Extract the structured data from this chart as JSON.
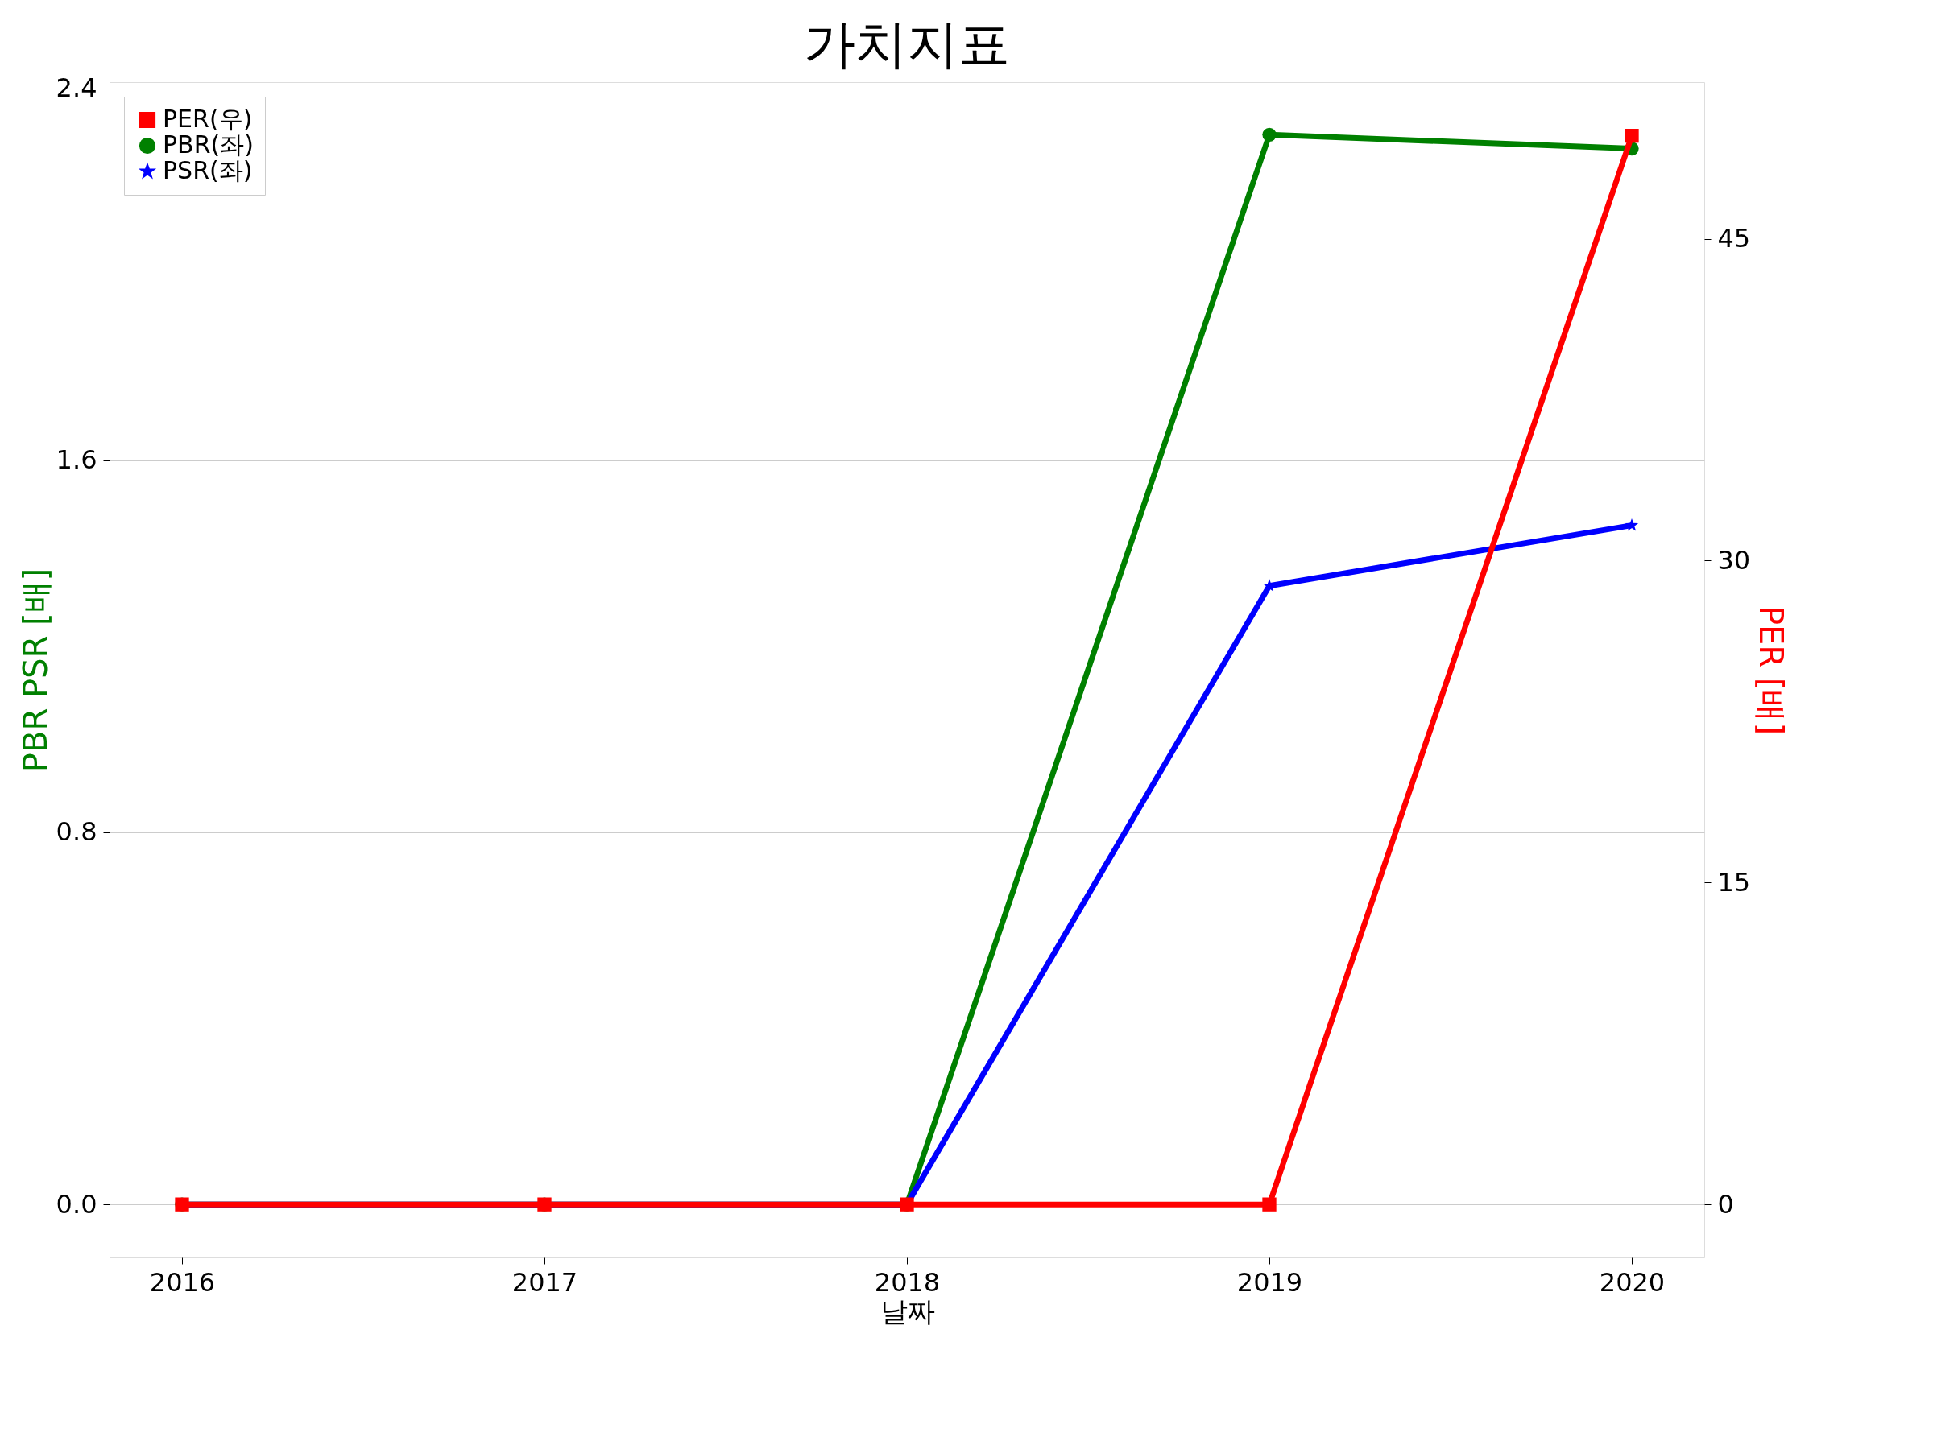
{
  "chart_data": {
    "type": "line",
    "title": "가치지표",
    "xlabel": "날짜",
    "ylabel": "PBR PSR [배]",
    "y2label": "PER [배]",
    "x": [
      2016,
      2017,
      2018,
      2019,
      2020
    ],
    "xlim": [
      2015.8,
      2020.2
    ],
    "xticks": [
      2016,
      2017,
      2018,
      2019,
      2020
    ],
    "ylim": [
      -0.114,
      2.413
    ],
    "yticks": [
      {
        "value": 0,
        "label": "0.0"
      },
      0.8,
      1.6,
      2.4
    ],
    "y2lim": [
      -2.47,
      52.3
    ],
    "y2ticks": [
      0,
      15,
      30,
      45
    ],
    "grid": "y",
    "legend": "top left",
    "line_style": "solid",
    "series": [
      {
        "name": "PER(우)",
        "color": "#ff0000",
        "axis": "y2",
        "marker": "square",
        "values": [
          0,
          0,
          0,
          0,
          49.8
        ]
      },
      {
        "name": "PBR(좌)",
        "color": "#008000",
        "marker": "circle",
        "values": [
          0,
          0,
          0,
          2.3,
          2.27
        ]
      },
      {
        "name": "PSR(좌)",
        "color": "#0000ff",
        "marker": "star",
        "values": [
          0,
          0,
          0,
          1.33,
          1.46
        ]
      }
    ]
  }
}
